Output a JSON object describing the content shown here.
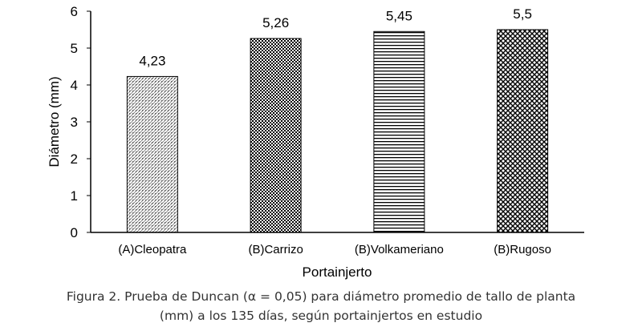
{
  "chart_data": {
    "type": "bar",
    "categories": [
      "(A)Cleopatra",
      "(B)Carrizo",
      "(B)Volkameriano",
      "(B)Rugoso"
    ],
    "values": [
      4.23,
      5.26,
      5.45,
      5.5
    ],
    "data_labels": [
      "4,23",
      "5,26",
      "5,45",
      "5,5"
    ],
    "patterns": [
      "dots",
      "checker-fine",
      "horizontal-lines",
      "checker-coarse"
    ],
    "xlabel": "Portainjerto",
    "ylabel": "Diámetro (mm)",
    "ylim": [
      0,
      6
    ],
    "yticks": [
      "0",
      "1",
      "2",
      "3",
      "4",
      "5",
      "6"
    ],
    "grid": false,
    "bar_stroke": "#000000"
  },
  "caption": {
    "line1": "Figura 2.  Prueba de Duncan (α = 0,05) para diámetro promedio de tallo de planta",
    "line2": "(mm) a los 135 días, según portainjertos en estudio"
  }
}
